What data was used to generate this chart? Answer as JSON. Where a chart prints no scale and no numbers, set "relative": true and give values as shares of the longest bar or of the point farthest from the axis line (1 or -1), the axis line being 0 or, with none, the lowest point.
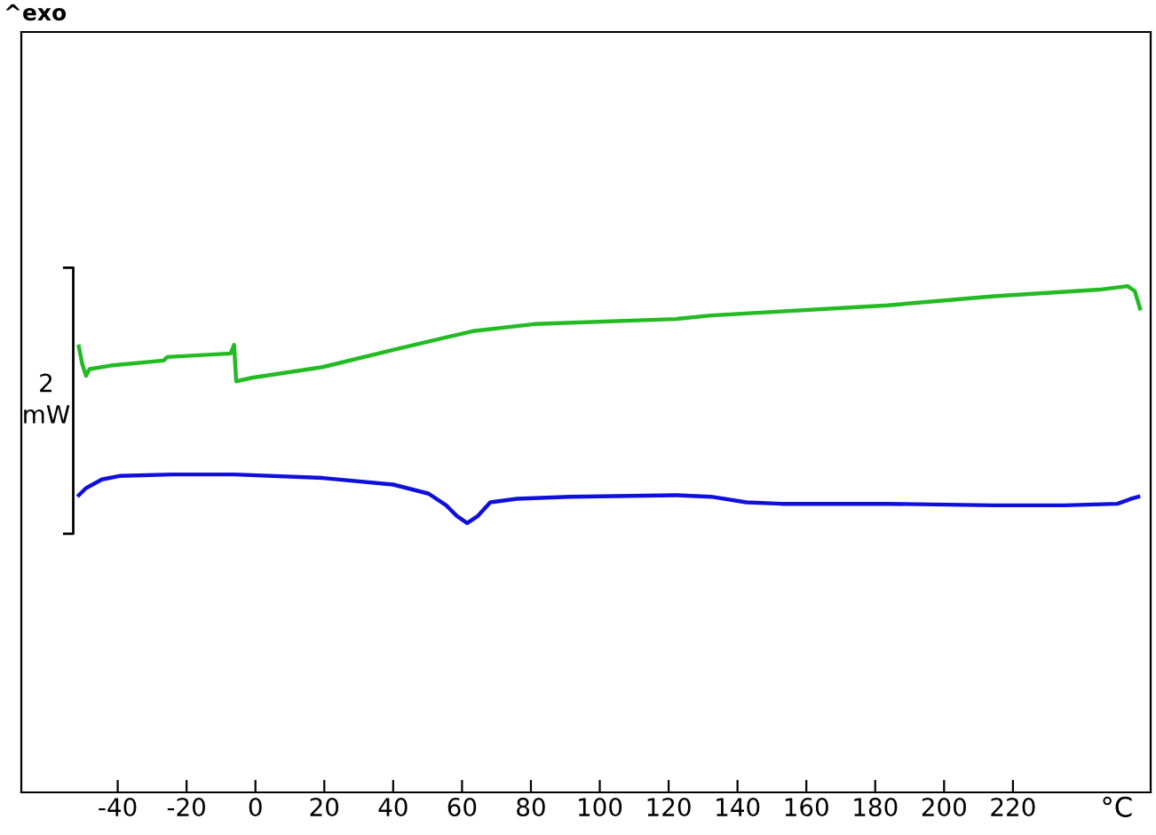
{
  "chart_data": {
    "type": "line",
    "relative": true,
    "title": "^exo",
    "xlabel": "°C",
    "annotations": [
      "2\nmW"
    ],
    "xlim": [
      -68,
      260
    ],
    "xticks": [
      -40,
      -20,
      0,
      20,
      40,
      60,
      80,
      100,
      120,
      140,
      160,
      180,
      200,
      220
    ],
    "grid": false,
    "legend": false,
    "marker": "none",
    "line_style": "solid",
    "series": [
      {
        "color": "#22bb22",
        "x": [
          -51.3,
          -50.3,
          -49.2,
          -48.2,
          -42.1,
          -26.7,
          -25.6,
          -7.2,
          -6.2,
          -5.6,
          -1.0,
          19.5,
          40.0,
          63.1,
          81.0,
          122.1,
          132.3,
          183.6,
          214.4,
          245.1,
          253.3,
          255.4,
          256.9
        ],
        "values": [
          0.881,
          0.846,
          0.823,
          0.836,
          0.843,
          0.853,
          0.86,
          0.867,
          0.884,
          0.812,
          0.819,
          0.84,
          0.874,
          0.911,
          0.925,
          0.935,
          0.942,
          0.962,
          0.98,
          0.993,
          1,
          0.99,
          0.956
        ]
      },
      {
        "color": "#1010dd",
        "x": [
          -51.3,
          -49.2,
          -44.6,
          -39.5,
          -24.1,
          -6.2,
          19.5,
          40.0,
          50.3,
          55.4,
          58.5,
          61.5,
          64.6,
          68.2,
          75.9,
          91.3,
          122.1,
          132.3,
          142.6,
          152.8,
          183.6,
          214.4,
          234.9,
          250.3,
          254.4,
          256.4
        ],
        "values": [
          0.587,
          0.601,
          0.618,
          0.625,
          0.628,
          0.628,
          0.621,
          0.608,
          0.59,
          0.567,
          0.546,
          0.532,
          0.546,
          0.573,
          0.58,
          0.584,
          0.587,
          0.584,
          0.573,
          0.57,
          0.57,
          0.567,
          0.567,
          0.57,
          0.58,
          0.584
        ]
      }
    ]
  }
}
